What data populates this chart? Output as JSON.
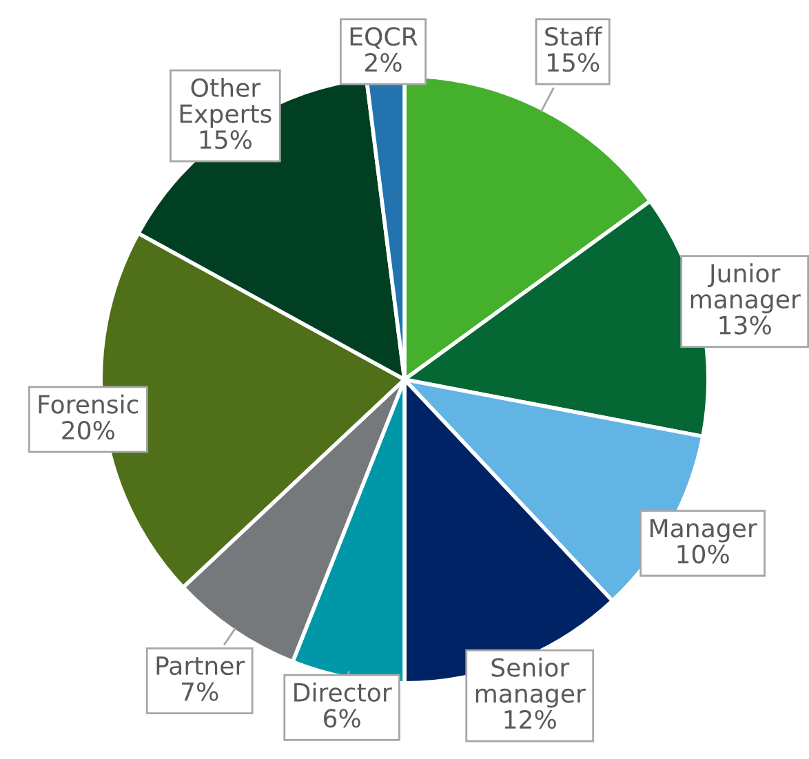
{
  "chart_data": {
    "type": "pie",
    "categories": [
      "Staff",
      "Junior manager",
      "Manager",
      "Senior manager",
      "Director",
      "Partner",
      "Forensic",
      "Other Experts",
      "EQCR"
    ],
    "values": [
      15,
      13,
      10,
      12,
      6,
      7,
      20,
      15,
      2
    ],
    "value_labels": [
      "15%",
      "13%",
      "10%",
      "12%",
      "6%",
      "7%",
      "20%",
      "15%",
      "2%"
    ],
    "colors": [
      "#44b02c",
      "#046734",
      "#62b4e4",
      "#002366",
      "#0098a9",
      "#76797b",
      "#4f6f18",
      "#003f22",
      "#2374ae"
    ],
    "legend": false
  }
}
